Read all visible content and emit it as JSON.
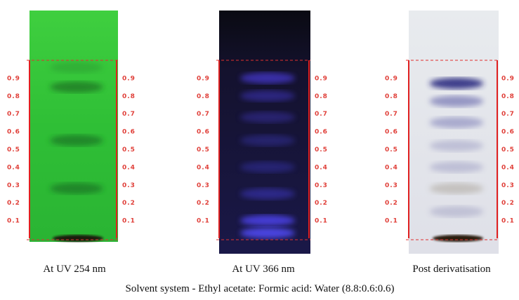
{
  "plates": [
    {
      "caption": "At UV 254 nm"
    },
    {
      "caption": "At UV 366 nm"
    },
    {
      "caption": "Post derivatisation"
    }
  ],
  "rf_scale": [
    0.1,
    0.2,
    0.3,
    0.4,
    0.5,
    0.6,
    0.7,
    0.8,
    0.9
  ],
  "footer": "Solvent system - Ethyl acetate: Formic acid: Water (8.8:0.6:0.6)"
}
